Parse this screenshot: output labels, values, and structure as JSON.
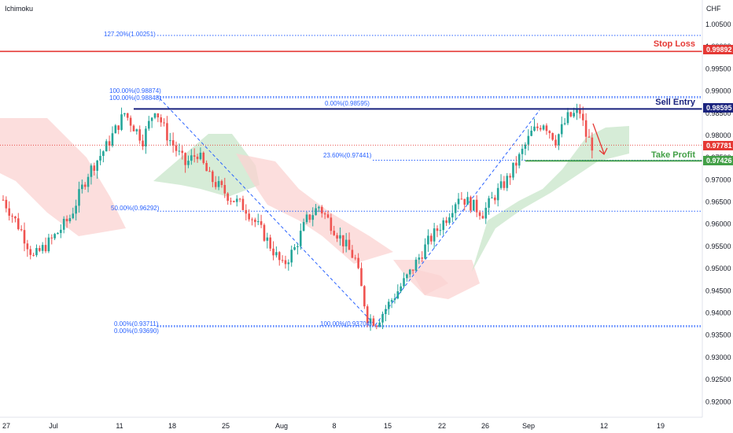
{
  "indicator_label": "Ichimoku",
  "currency": "CHF",
  "colors": {
    "bull": "#26a69a",
    "bear": "#ef5350",
    "cloud_bull": "#c8e6c9",
    "cloud_bear": "#fbd3d1",
    "fib": "#2962ff",
    "stop": "#e53935",
    "entry": "#1a237e",
    "take": "#43a047",
    "price": "#e53935"
  },
  "levels": {
    "stop_loss": {
      "label": "Stop Loss",
      "price": "0.99892",
      "value": 0.99892
    },
    "sell_entry": {
      "label": "Sell Entry",
      "price": "0.98595",
      "value": 0.98595
    },
    "take_profit": {
      "label": "Take Profit",
      "price": "0.97426",
      "value": 0.97426
    },
    "last_price": {
      "price": "0.97781",
      "value": 0.97781
    }
  },
  "fib_labels": {
    "ext_127": "127.20%(1.00251)",
    "top_100a": "100.00%(0.98874)",
    "top_100b": "100.00%(0.98848)",
    "right_0": "0.00%(0.98595)",
    "right_236": "23.60%(0.97441)",
    "mid_50": "50.00%(0.96292)",
    "bottom_0a": "0.00%(0.93711)",
    "bottom_0b": "0.00%(0.93690)",
    "bottom_100": "100.00%(0.93704)"
  },
  "chart_data": {
    "type": "candlestick",
    "instrument_label": "Ichimoku",
    "y_unit": "CHF",
    "ylim": [
      0.9165,
      1.0105
    ],
    "y_ticks": [
      "1.00500",
      "1.00000",
      "0.99500",
      "0.99000",
      "0.98500",
      "0.98000",
      "0.97500",
      "0.97000",
      "0.96500",
      "0.96000",
      "0.95500",
      "0.95000",
      "0.94500",
      "0.94000",
      "0.93500",
      "0.93000",
      "0.92500",
      "0.92000"
    ],
    "x_ticks": [
      "27",
      "Jul",
      "11",
      "18",
      "25",
      "Aug",
      "8",
      "15",
      "22",
      "26",
      "Sep",
      "12",
      "19"
    ],
    "close_path": [
      {
        "bar": 0,
        "close": 0.9655
      },
      {
        "bar": 6,
        "close": 0.9585
      },
      {
        "bar": 10,
        "close": 0.9525
      },
      {
        "bar": 16,
        "close": 0.9565
      },
      {
        "bar": 22,
        "close": 0.9615
      },
      {
        "bar": 28,
        "close": 0.9715
      },
      {
        "bar": 34,
        "close": 0.9775
      },
      {
        "bar": 40,
        "close": 0.985
      },
      {
        "bar": 46,
        "close": 0.979
      },
      {
        "bar": 50,
        "close": 0.9862
      },
      {
        "bar": 54,
        "close": 0.98
      },
      {
        "bar": 60,
        "close": 0.9735
      },
      {
        "bar": 64,
        "close": 0.976
      },
      {
        "bar": 68,
        "close": 0.9705
      },
      {
        "bar": 74,
        "close": 0.9665
      },
      {
        "bar": 80,
        "close": 0.9635
      },
      {
        "bar": 86,
        "close": 0.9575
      },
      {
        "bar": 92,
        "close": 0.9505
      },
      {
        "bar": 96,
        "close": 0.9545
      },
      {
        "bar": 100,
        "close": 0.961
      },
      {
        "bar": 104,
        "close": 0.964
      },
      {
        "bar": 108,
        "close": 0.96
      },
      {
        "bar": 112,
        "close": 0.956
      },
      {
        "bar": 116,
        "close": 0.952
      },
      {
        "bar": 120,
        "close": 0.939
      },
      {
        "bar": 123,
        "close": 0.938
      },
      {
        "bar": 128,
        "close": 0.943
      },
      {
        "bar": 134,
        "close": 0.949
      },
      {
        "bar": 140,
        "close": 0.956
      },
      {
        "bar": 146,
        "close": 0.9615
      },
      {
        "bar": 150,
        "close": 0.9665
      },
      {
        "bar": 154,
        "close": 0.9645
      },
      {
        "bar": 158,
        "close": 0.9625
      },
      {
        "bar": 162,
        "close": 0.9665
      },
      {
        "bar": 166,
        "close": 0.97
      },
      {
        "bar": 170,
        "close": 0.975
      },
      {
        "bar": 174,
        "close": 0.9805
      },
      {
        "bar": 178,
        "close": 0.983
      },
      {
        "bar": 182,
        "close": 0.979
      },
      {
        "bar": 186,
        "close": 0.984
      },
      {
        "bar": 190,
        "close": 0.9853
      },
      {
        "bar": 192,
        "close": 0.98
      },
      {
        "bar": 194,
        "close": 0.9778
      }
    ],
    "series": [
      {
        "name": "Stop Loss",
        "value": 0.99892
      },
      {
        "name": "Sell Entry",
        "value": 0.98595
      },
      {
        "name": "Take Profit",
        "value": 0.97426
      }
    ],
    "fib_levels": [
      1.00251,
      0.98874,
      0.98848,
      0.98595,
      0.97441,
      0.96292,
      0.93711,
      0.9369,
      0.93704
    ],
    "grid": false
  }
}
